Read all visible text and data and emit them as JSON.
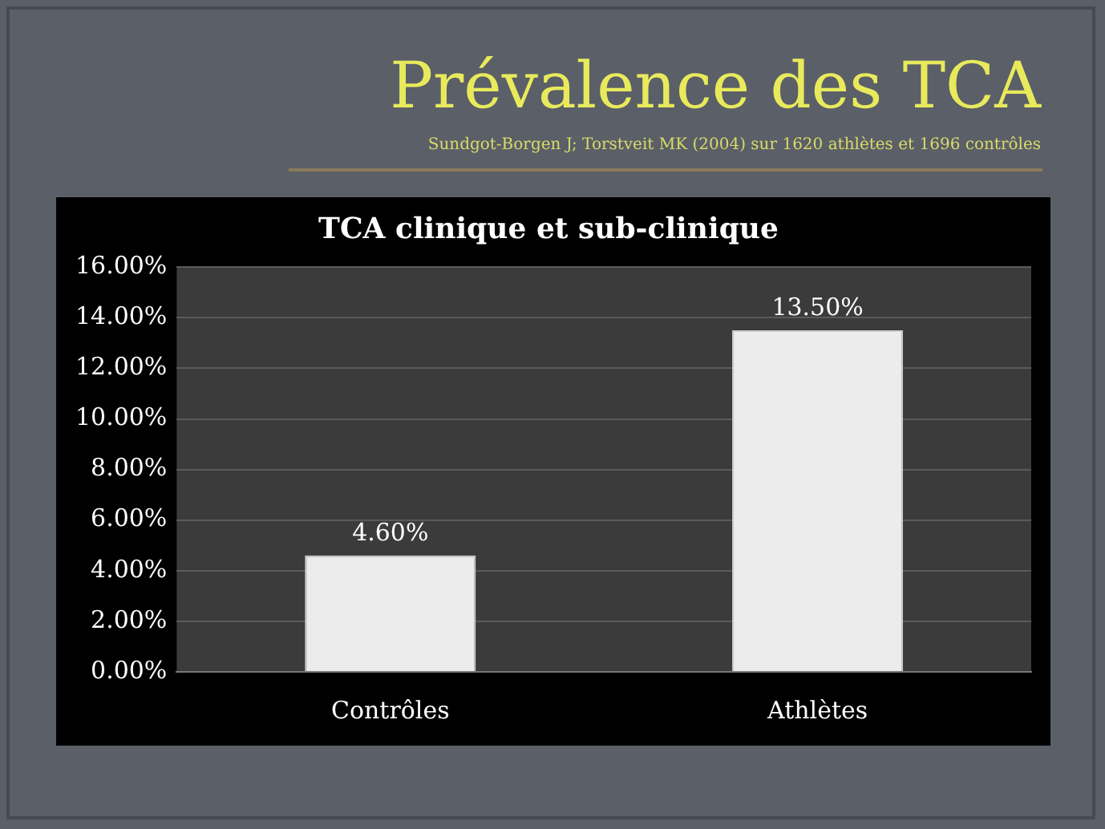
{
  "chart_data": {
    "type": "bar",
    "title": "Prévalence des TCA",
    "subtitle": "TCA clinique et sub-clinique",
    "annotations": [
      "Sundgot-Borgen J; Torstveit MK (2004) sur 1620 athlètes et 1696 contrôles"
    ],
    "categories": [
      "Contrôles",
      "Athlètes"
    ],
    "values": [
      4.6,
      13.5
    ],
    "value_labels": [
      "4.60%",
      "13.50%"
    ],
    "color": "#ececec",
    "ylim": [
      0,
      16
    ],
    "yticks": [
      {
        "value": 0,
        "label": "0.00%"
      },
      {
        "value": 2,
        "label": "2.00%"
      },
      {
        "value": 4,
        "label": "4.00%"
      },
      {
        "value": 6,
        "label": "6.00%"
      },
      {
        "value": 8,
        "label": "8.00%"
      },
      {
        "value": 10,
        "label": "10.00%"
      },
      {
        "value": 12,
        "label": "12.00%"
      },
      {
        "value": 14,
        "label": "14.00%"
      },
      {
        "value": 16,
        "label": "16.00%"
      }
    ],
    "grid": "y",
    "legend": false
  }
}
